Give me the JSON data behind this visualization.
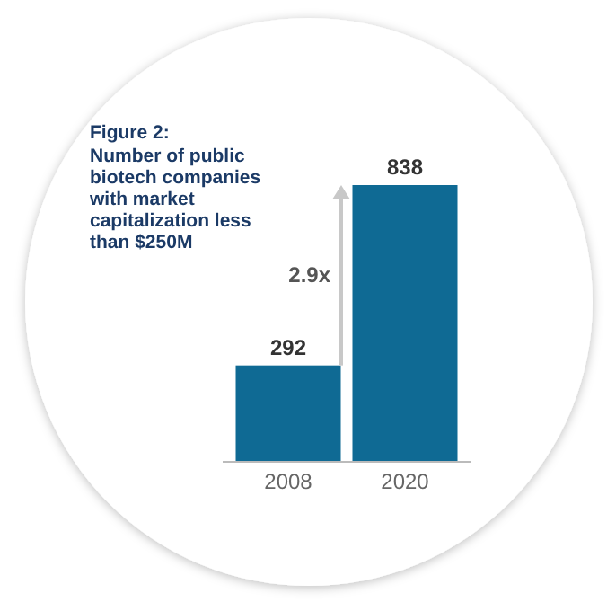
{
  "chart_data": {
    "type": "bar",
    "title": "Figure 2:",
    "subtitle": "Number of public biotech companies with market capitalization less than $250M",
    "categories": [
      "2008",
      "2020"
    ],
    "values": [
      292,
      838
    ],
    "color": "#0f6a94",
    "data_labels": true,
    "annotations": [
      "2.9x"
    ]
  }
}
